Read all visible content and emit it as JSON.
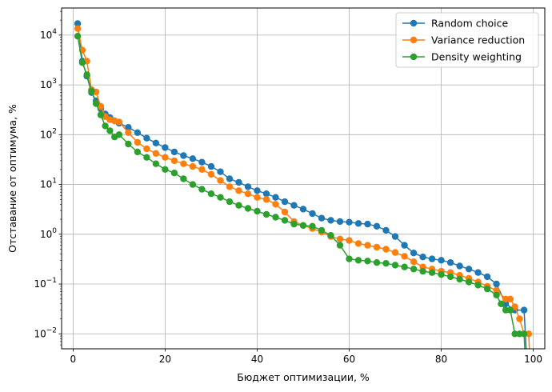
{
  "chart_data": {
    "type": "line",
    "xlabel": "Бюджет оптимизации, %",
    "ylabel": "Отставание от оптимума, %",
    "xlim": [
      -2.5,
      102.5
    ],
    "ylim": [
      0.005,
      35000
    ],
    "yscale": "log",
    "grid": true,
    "legend_position": "top-right",
    "x_ticks": [
      0,
      20,
      40,
      60,
      80,
      100
    ],
    "y_ticks": [
      0.01,
      0.1,
      1,
      10,
      100,
      1000,
      10000
    ],
    "y_tick_labels": [
      {
        "base": "10",
        "exp": "−2"
      },
      {
        "base": "10",
        "exp": "−1"
      },
      {
        "base": "10",
        "exp": "0"
      },
      {
        "base": "10",
        "exp": "1"
      },
      {
        "base": "10",
        "exp": "2"
      },
      {
        "base": "10",
        "exp": "3"
      },
      {
        "base": "10",
        "exp": "4"
      }
    ],
    "series": [
      {
        "name": "Random choice",
        "color": "#1f77b4",
        "points": [
          [
            1,
            17000
          ],
          [
            2,
            3000
          ],
          [
            3,
            1500
          ],
          [
            4,
            700
          ],
          [
            5,
            480
          ],
          [
            6,
            330
          ],
          [
            7,
            260
          ],
          [
            8,
            220
          ],
          [
            9,
            190
          ],
          [
            10,
            170
          ],
          [
            12,
            140
          ],
          [
            14,
            110
          ],
          [
            16,
            85
          ],
          [
            18,
            68
          ],
          [
            20,
            55
          ],
          [
            22,
            45
          ],
          [
            24,
            38
          ],
          [
            26,
            33
          ],
          [
            28,
            28
          ],
          [
            30,
            23
          ],
          [
            32,
            18
          ],
          [
            34,
            13
          ],
          [
            36,
            11
          ],
          [
            38,
            9
          ],
          [
            40,
            7.5
          ],
          [
            42,
            6.5
          ],
          [
            44,
            5.5
          ],
          [
            46,
            4.5
          ],
          [
            48,
            3.8
          ],
          [
            50,
            3.2
          ],
          [
            52,
            2.6
          ],
          [
            54,
            2.1
          ],
          [
            56,
            1.9
          ],
          [
            58,
            1.8
          ],
          [
            60,
            1.75
          ],
          [
            62,
            1.65
          ],
          [
            64,
            1.6
          ],
          [
            66,
            1.45
          ],
          [
            68,
            1.2
          ],
          [
            70,
            0.9
          ],
          [
            72,
            0.6
          ],
          [
            74,
            0.42
          ],
          [
            76,
            0.35
          ],
          [
            78,
            0.32
          ],
          [
            80,
            0.3
          ],
          [
            82,
            0.27
          ],
          [
            84,
            0.23
          ],
          [
            86,
            0.2
          ],
          [
            88,
            0.17
          ],
          [
            90,
            0.14
          ],
          [
            92,
            0.1
          ],
          [
            94,
            0.04
          ],
          [
            96,
            0.03
          ],
          [
            98,
            0.03
          ],
          [
            98.5,
            0.004
          ]
        ]
      },
      {
        "name": "Variance reduction",
        "color": "#ff7f0e",
        "points": [
          [
            1,
            13500
          ],
          [
            2,
            5000
          ],
          [
            3,
            3000
          ],
          [
            4,
            800
          ],
          [
            5,
            720
          ],
          [
            6,
            370
          ],
          [
            7,
            230
          ],
          [
            8,
            200
          ],
          [
            9,
            190
          ],
          [
            10,
            180
          ],
          [
            12,
            110
          ],
          [
            14,
            70
          ],
          [
            16,
            52
          ],
          [
            18,
            42
          ],
          [
            20,
            35
          ],
          [
            22,
            30
          ],
          [
            24,
            26
          ],
          [
            26,
            23
          ],
          [
            28,
            20
          ],
          [
            30,
            16
          ],
          [
            32,
            12
          ],
          [
            34,
            9
          ],
          [
            36,
            7.5
          ],
          [
            38,
            6.5
          ],
          [
            40,
            5.5
          ],
          [
            42,
            5
          ],
          [
            44,
            4
          ],
          [
            46,
            2.8
          ],
          [
            48,
            1.8
          ],
          [
            50,
            1.5
          ],
          [
            52,
            1.3
          ],
          [
            54,
            1.1
          ],
          [
            56,
            0.9
          ],
          [
            58,
            0.8
          ],
          [
            60,
            0.75
          ],
          [
            62,
            0.65
          ],
          [
            64,
            0.6
          ],
          [
            66,
            0.55
          ],
          [
            68,
            0.5
          ],
          [
            70,
            0.43
          ],
          [
            72,
            0.36
          ],
          [
            74,
            0.28
          ],
          [
            76,
            0.22
          ],
          [
            78,
            0.2
          ],
          [
            80,
            0.18
          ],
          [
            82,
            0.17
          ],
          [
            84,
            0.15
          ],
          [
            86,
            0.13
          ],
          [
            88,
            0.11
          ],
          [
            90,
            0.09
          ],
          [
            92,
            0.075
          ],
          [
            94,
            0.05
          ],
          [
            95,
            0.05
          ],
          [
            96,
            0.035
          ],
          [
            97,
            0.02
          ],
          [
            98,
            0.01
          ],
          [
            99,
            0.01
          ],
          [
            99.2,
            0.004
          ]
        ]
      },
      {
        "name": "Density weighting",
        "color": "#2ca02c",
        "points": [
          [
            1,
            9500
          ],
          [
            2,
            2800
          ],
          [
            3,
            1600
          ],
          [
            4,
            750
          ],
          [
            5,
            420
          ],
          [
            6,
            250
          ],
          [
            7,
            150
          ],
          [
            8,
            120
          ],
          [
            9,
            90
          ],
          [
            10,
            100
          ],
          [
            12,
            65
          ],
          [
            14,
            45
          ],
          [
            16,
            35
          ],
          [
            18,
            26
          ],
          [
            20,
            20
          ],
          [
            22,
            17
          ],
          [
            24,
            13
          ],
          [
            26,
            10
          ],
          [
            28,
            8
          ],
          [
            30,
            6.5
          ],
          [
            32,
            5.5
          ],
          [
            34,
            4.5
          ],
          [
            36,
            3.8
          ],
          [
            38,
            3.3
          ],
          [
            40,
            2.9
          ],
          [
            42,
            2.5
          ],
          [
            44,
            2.2
          ],
          [
            46,
            1.9
          ],
          [
            48,
            1.6
          ],
          [
            50,
            1.5
          ],
          [
            52,
            1.45
          ],
          [
            54,
            1.2
          ],
          [
            56,
            0.95
          ],
          [
            58,
            0.6
          ],
          [
            60,
            0.32
          ],
          [
            62,
            0.3
          ],
          [
            64,
            0.29
          ],
          [
            66,
            0.27
          ],
          [
            68,
            0.26
          ],
          [
            70,
            0.24
          ],
          [
            72,
            0.22
          ],
          [
            74,
            0.2
          ],
          [
            76,
            0.18
          ],
          [
            78,
            0.17
          ],
          [
            80,
            0.155
          ],
          [
            82,
            0.14
          ],
          [
            84,
            0.125
          ],
          [
            86,
            0.11
          ],
          [
            88,
            0.095
          ],
          [
            90,
            0.08
          ],
          [
            92,
            0.06
          ],
          [
            93,
            0.04
          ],
          [
            94,
            0.03
          ],
          [
            95,
            0.03
          ],
          [
            96,
            0.01
          ],
          [
            97,
            0.01
          ],
          [
            98,
            0.01
          ],
          [
            98.2,
            0.004
          ]
        ]
      }
    ]
  }
}
